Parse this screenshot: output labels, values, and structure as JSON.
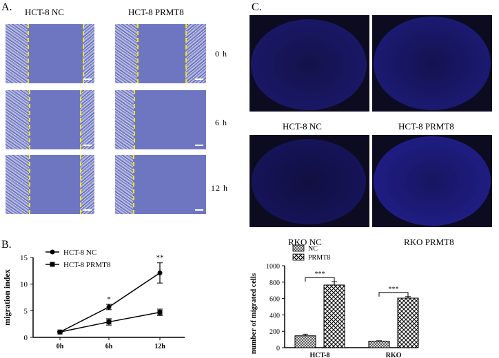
{
  "panelA": {
    "label": "A.",
    "col_titles": [
      "HCT-8 NC",
      "HCT-8 PRMT8"
    ],
    "time_labels": [
      "0 h",
      "6 h",
      "12 h"
    ]
  },
  "panelC": {
    "label": "C.",
    "row1_titles": [
      "HCT-8 NC",
      "HCT-8 PRMT8"
    ],
    "row2_titles": [
      "RKO NC",
      "RKO PRMT8"
    ]
  },
  "panelB": {
    "label": "B."
  },
  "chart_data": [
    {
      "type": "line",
      "title": "",
      "xlabel": "",
      "ylabel": "migration index",
      "categories": [
        "0h",
        "6h",
        "12h"
      ],
      "ylim": [
        0,
        15
      ],
      "yticks": [
        0,
        5,
        10,
        15
      ],
      "series": [
        {
          "name": "HCT-8 NC",
          "marker": "circle",
          "values": [
            1.0,
            5.7,
            12.1
          ],
          "errors": [
            0.1,
            0.5,
            1.9
          ]
        },
        {
          "name": "HCT-8 PRMT8",
          "marker": "square",
          "values": [
            1.0,
            2.9,
            4.7
          ],
          "errors": [
            0.1,
            0.6,
            0.6
          ]
        }
      ],
      "annotations": [
        {
          "x": "6h",
          "text": "*"
        },
        {
          "x": "12h",
          "text": "**"
        }
      ],
      "legend": "top-left",
      "grid": false
    },
    {
      "type": "bar",
      "title": "",
      "xlabel": "",
      "ylabel": "number of migrated cells",
      "categories": [
        "HCT-8",
        "RKO"
      ],
      "ylim": [
        0,
        1000
      ],
      "yticks": [
        0,
        200,
        400,
        600,
        800,
        1000
      ],
      "series": [
        {
          "name": "NC",
          "values": [
            145,
            80
          ],
          "errors": [
            20,
            5
          ]
        },
        {
          "name": "PRMT8",
          "values": [
            765,
            605
          ],
          "errors": [
            40,
            18
          ]
        }
      ],
      "annotations": [
        {
          "x": "HCT-8",
          "text": "***"
        },
        {
          "x": "RKO",
          "text": "***"
        }
      ],
      "legend": "top-left",
      "grid": false
    }
  ]
}
